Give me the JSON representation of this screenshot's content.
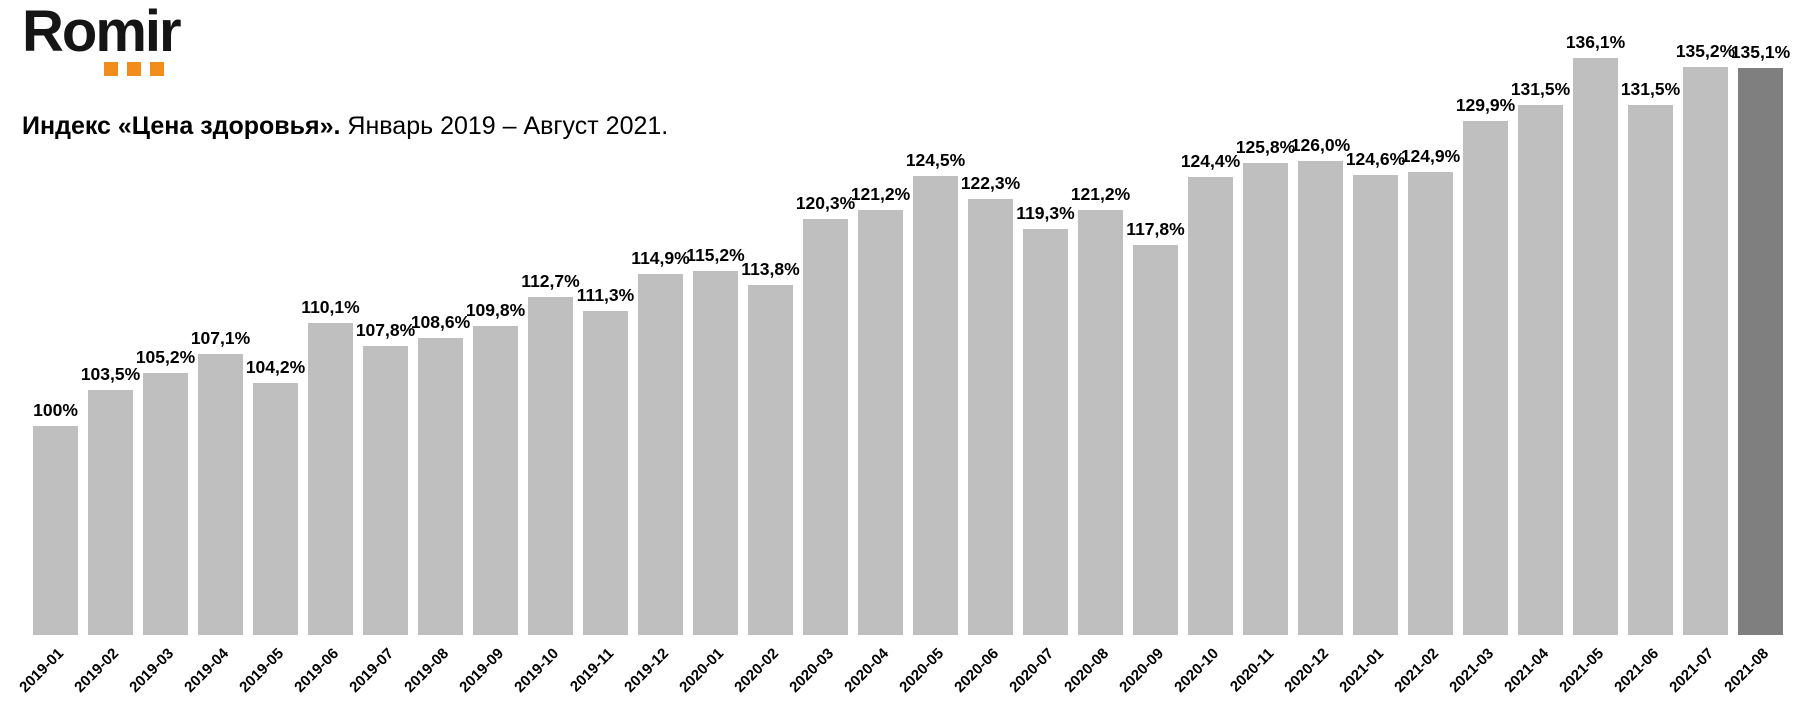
{
  "logo": {
    "text": "Romir",
    "accent_color": "#F28C1A",
    "dot_count": 3
  },
  "header": {
    "title_bold": "Индекс «Цена здоровья».",
    "title_regular": " Январь 2019 – Август 2021."
  },
  "chart_data": {
    "type": "bar",
    "title": "Индекс «Цена здоровья». Январь 2019 – Август 2021.",
    "categories": [
      "2019-01",
      "2019-02",
      "2019-03",
      "2019-04",
      "2019-05",
      "2019-06",
      "2019-07",
      "2019-08",
      "2019-09",
      "2019-10",
      "2019-11",
      "2019-12",
      "2020-01",
      "2020-02",
      "2020-03",
      "2020-04",
      "2020-05",
      "2020-06",
      "2020-07",
      "2020-08",
      "2020-09",
      "2020-10",
      "2020-11",
      "2020-12",
      "2021-01",
      "2021-02",
      "2021-03",
      "2021-04",
      "2021-05",
      "2021-06",
      "2021-07",
      "2021-08"
    ],
    "values": [
      100,
      103.5,
      105.2,
      107.1,
      104.2,
      110.1,
      107.8,
      108.6,
      109.8,
      112.7,
      111.3,
      114.9,
      115.2,
      113.8,
      120.3,
      121.2,
      124.5,
      122.3,
      119.3,
      121.2,
      117.8,
      124.4,
      125.8,
      126.0,
      124.6,
      124.9,
      129.9,
      131.5,
      136.1,
      131.5,
      135.2,
      135.1
    ],
    "value_labels": [
      "100%",
      "103,5%",
      "105,2%",
      "107,1%",
      "104,2%",
      "110,1%",
      "107,8%",
      "108,6%",
      "109,8%",
      "112,7%",
      "111,3%",
      "114,9%",
      "115,2%",
      "113,8%",
      "120,3%",
      "121,2%",
      "124,5%",
      "122,3%",
      "119,3%",
      "121,2%",
      "117,8%",
      "124,4%",
      "125,8%",
      "126,0%",
      "124,6%",
      "124,9%",
      "129,9%",
      "131,5%",
      "136,1%",
      "131,5%",
      "135,2%",
      "135,1%"
    ],
    "xlabel": "",
    "ylabel": "",
    "ylim": [
      79.5,
      136.1
    ],
    "grid": false,
    "y_axis_visible": false,
    "legend": "none",
    "bar_color": "#BFBFBF",
    "highlight_color": "#7F7F7F",
    "highlight_index": 31
  }
}
